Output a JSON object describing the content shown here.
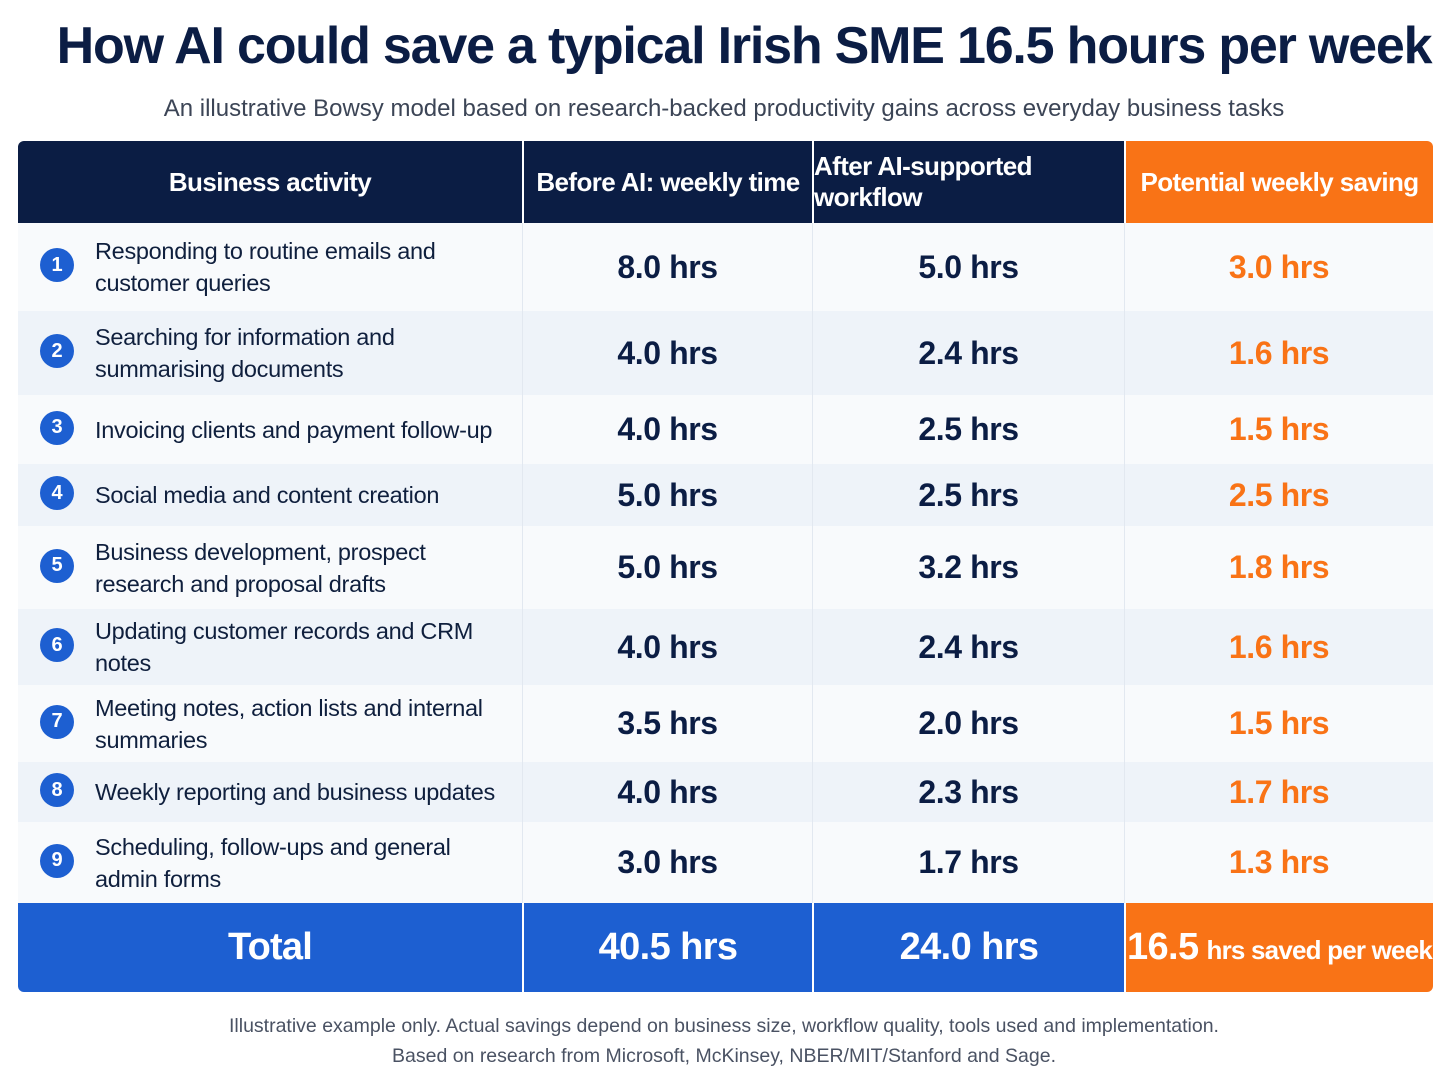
{
  "header": {
    "title": "How AI could save a typical Irish SME 16.5 hours per week",
    "subtitle": "An illustrative Bowsy model based on research-backed productivity gains across everyday business tasks"
  },
  "table": {
    "columns": [
      "Business activity",
      "Before AI: weekly time",
      "After AI-supported workflow",
      "Potential weekly saving"
    ],
    "rows": [
      {
        "num": "1",
        "activity": "Responding to routine emails and customer queries",
        "before": "8.0 hrs",
        "after": "5.0 hrs",
        "saving": "3.0 hrs"
      },
      {
        "num": "2",
        "activity": "Searching for information and summarising documents",
        "before": "4.0 hrs",
        "after": "2.4 hrs",
        "saving": "1.6 hrs"
      },
      {
        "num": "3",
        "activity": "Invoicing clients and payment follow-up",
        "before": "4.0 hrs",
        "after": "2.5 hrs",
        "saving": "1.5 hrs"
      },
      {
        "num": "4",
        "activity": "Social media and content creation",
        "before": "5.0 hrs",
        "after": "2.5 hrs",
        "saving": "2.5 hrs"
      },
      {
        "num": "5",
        "activity": "Business development, prospect research and proposal drafts",
        "before": "5.0 hrs",
        "after": "3.2 hrs",
        "saving": "1.8 hrs"
      },
      {
        "num": "6",
        "activity": "Updating customer records and CRM notes",
        "before": "4.0 hrs",
        "after": "2.4 hrs",
        "saving": "1.6 hrs"
      },
      {
        "num": "7",
        "activity": "Meeting notes, action lists and internal summaries",
        "before": "3.5 hrs",
        "after": "2.0 hrs",
        "saving": "1.5 hrs"
      },
      {
        "num": "8",
        "activity": "Weekly reporting and business updates",
        "before": "4.0 hrs",
        "after": "2.3 hrs",
        "saving": "1.7 hrs"
      },
      {
        "num": "9",
        "activity": "Scheduling, follow-ups and general admin forms",
        "before": "3.0 hrs",
        "after": "1.7 hrs",
        "saving": "1.3 hrs"
      }
    ],
    "total": {
      "label": "Total",
      "before": "40.5 hrs",
      "after": "24.0 hrs",
      "saving_value": "16.5",
      "saving_suffix": "hrs saved per week"
    }
  },
  "footer": {
    "line1": "Illustrative example only. Actual savings depend on business size, workflow quality, tools used and implementation.",
    "line2": "Based on research from Microsoft, McKinsey, NBER/MIT/Stanford and Sage."
  },
  "colors": {
    "navy": "#0b1d44",
    "blue": "#1d5fd1",
    "orange": "#f97316"
  }
}
